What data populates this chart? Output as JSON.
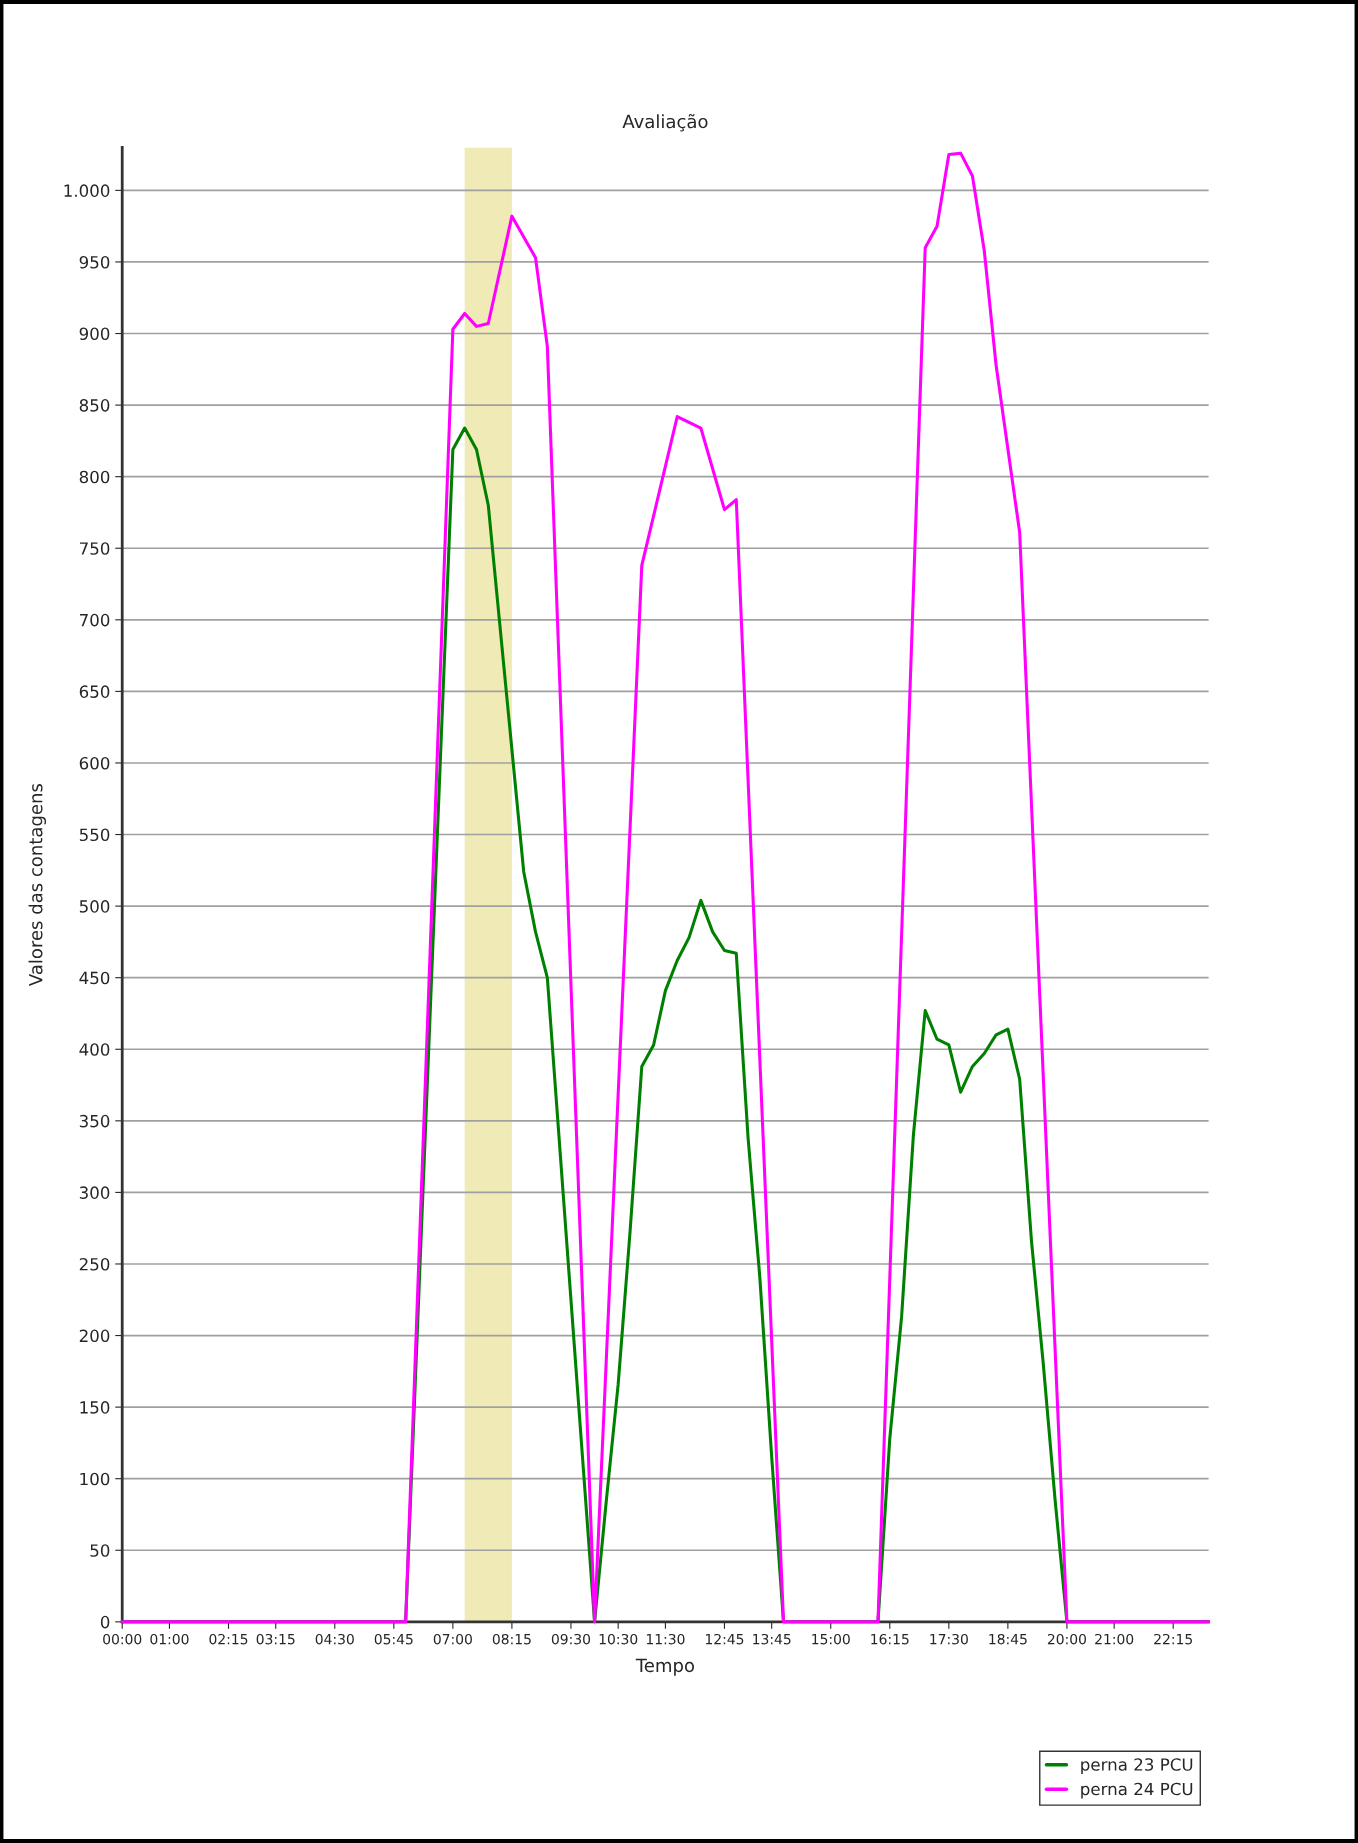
{
  "chart_data": {
    "type": "line",
    "title": "Avaliação",
    "xlabel": "Tempo",
    "ylabel": "Valores das contagens",
    "xlim": [
      0,
      23
    ],
    "xticks": [
      {
        "value": 0,
        "label": "00:00"
      },
      {
        "value": 1.0,
        "label": "01:00"
      },
      {
        "value": 2.25,
        "label": "02:15"
      },
      {
        "value": 3.25,
        "label": "03:15"
      },
      {
        "value": 4.5,
        "label": "04:30"
      },
      {
        "value": 5.75,
        "label": "05:45"
      },
      {
        "value": 7.0,
        "label": "07:00"
      },
      {
        "value": 8.25,
        "label": "08:15"
      },
      {
        "value": 9.5,
        "label": "09:30"
      },
      {
        "value": 10.5,
        "label": "10:30"
      },
      {
        "value": 11.5,
        "label": "11:30"
      },
      {
        "value": 12.75,
        "label": "12:45"
      },
      {
        "value": 13.75,
        "label": "13:45"
      },
      {
        "value": 15.0,
        "label": "15:00"
      },
      {
        "value": 16.25,
        "label": "16:15"
      },
      {
        "value": 17.5,
        "label": "17:30"
      },
      {
        "value": 18.75,
        "label": "18:45"
      },
      {
        "value": 20.0,
        "label": "20:00"
      },
      {
        "value": 21.0,
        "label": "21:00"
      },
      {
        "value": 22.25,
        "label": "22:15"
      }
    ],
    "ylim": [
      0,
      1030
    ],
    "yticks": [
      0,
      50,
      100,
      150,
      200,
      250,
      300,
      350,
      400,
      450,
      500,
      550,
      600,
      650,
      700,
      750,
      800,
      850,
      900,
      950,
      {
        "value": 1000,
        "label": "1.000"
      }
    ],
    "grid": "y",
    "legend": "bottom right",
    "bands": [
      {
        "axis": "x",
        "from": 7.25,
        "to": 8.25,
        "color": "#f0eab6"
      }
    ],
    "series": [
      {
        "name": "perna 23 PCU",
        "color": "#008000",
        "x": [
          0,
          6.0,
          7.0,
          7.25,
          7.5,
          7.75,
          8.5,
          8.75,
          9.0,
          10.0,
          10.25,
          10.5,
          10.75,
          11.0,
          11.25,
          11.5,
          11.75,
          12.0,
          12.25,
          12.5,
          12.75,
          13.0,
          13.25,
          13.5,
          13.75,
          14.0,
          16.0,
          16.25,
          16.5,
          16.75,
          17.0,
          17.25,
          17.5,
          17.75,
          18.0,
          18.25,
          18.5,
          18.75,
          19.0,
          19.25,
          19.5,
          19.75,
          20.0,
          23.0
        ],
        "values": [
          0,
          0,
          819,
          834,
          819,
          780,
          524,
          482,
          450,
          0,
          85,
          166,
          272,
          388,
          403,
          441,
          462,
          478,
          504,
          482,
          469,
          467,
          338,
          240,
          115,
          0,
          0,
          128,
          213,
          340,
          427,
          407,
          403,
          370,
          388,
          397,
          410,
          414,
          379,
          266,
          180,
          85,
          0,
          0
        ]
      },
      {
        "name": "perna 24 PCU",
        "color": "#ff00ff",
        "x": [
          0,
          6.0,
          7.0,
          7.25,
          7.5,
          7.75,
          8.25,
          8.75,
          9.0,
          10.0,
          11.0,
          11.75,
          12.25,
          12.75,
          13.0,
          14.0,
          16.0,
          17.0,
          17.25,
          17.5,
          17.75,
          18.0,
          18.25,
          18.5,
          19.0,
          20.0,
          23.0
        ],
        "values": [
          0,
          0,
          903,
          914,
          905,
          907,
          982,
          953,
          891,
          0,
          738,
          842,
          834,
          777,
          784,
          0,
          0,
          960,
          975,
          1025,
          1026,
          1010,
          958,
          878,
          761,
          0,
          0
        ]
      }
    ]
  }
}
